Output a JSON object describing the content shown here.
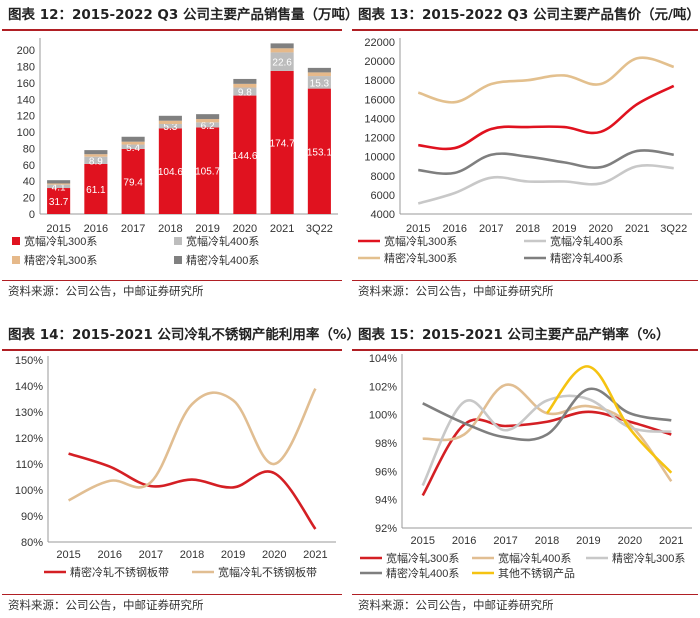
{
  "panels": [
    {
      "title": "图表 12：2015-2022 Q3 公司主要产品销售量（万吨）",
      "source": "资料来源：公司公告，中邮证券研究所"
    },
    {
      "title": "图表 13：2015-2022 Q3 公司主要产品售价（元/吨）",
      "source": "资料来源：公司公告，中邮证券研究所"
    },
    {
      "title": "图表 14：2015-2021 公司冷轧不锈钢产能利用率（%）",
      "source": "资料来源：公司公告，中邮证券研究所"
    },
    {
      "title": "图表 15：2015-2021 公司主要产品产销率（%）",
      "source": "资料来源：公司公告，中邮证券研究所"
    }
  ],
  "chart_data": [
    {
      "type": "bar",
      "stacked": true,
      "categories": [
        "2015",
        "2016",
        "2017",
        "2018",
        "2019",
        "2020",
        "2021",
        "3Q22"
      ],
      "series": [
        {
          "name": "宽幅冷轧300系",
          "color": "#e0121f",
          "values": [
            31.7,
            61.1,
            79.4,
            104.6,
            105.7,
            144.6,
            174.7,
            153.1
          ],
          "show_labels": true,
          "label_color": "#ffffff"
        },
        {
          "name": "宽幅冷轧400系",
          "color": "#bdbdbd",
          "values": [
            4.1,
            8.9,
            5.4,
            5.3,
            6.2,
            9.8,
            22.6,
            15.3
          ],
          "show_labels": true,
          "label_color": "#ffffff"
        },
        {
          "name": "精密冷轧300系",
          "color": "#e6b98a",
          "values": [
            1.5,
            3.0,
            3.5,
            4.0,
            4.0,
            4.5,
            5.0,
            4.5
          ],
          "show_labels": false
        },
        {
          "name": "精密冷轧400系",
          "color": "#808080",
          "values": [
            4.0,
            5.0,
            6.0,
            6.0,
            6.0,
            6.0,
            6.0,
            5.5
          ],
          "show_labels": false
        }
      ],
      "yticks": [
        "0",
        "20",
        "40",
        "60",
        "80",
        "100",
        "120",
        "140",
        "160",
        "180",
        "200"
      ],
      "ylim": [
        0,
        210
      ],
      "legend_position": "bottom"
    },
    {
      "type": "line",
      "categories": [
        "2015",
        "2016",
        "2017",
        "2018",
        "2019",
        "2020",
        "2021",
        "3Q22"
      ],
      "series": [
        {
          "name": "宽幅冷轧300系",
          "color": "#e0121f",
          "values": [
            11200,
            10900,
            12900,
            13100,
            13100,
            12600,
            15500,
            17400
          ]
        },
        {
          "name": "宽幅冷轧400系",
          "color": "#c8c8c8",
          "values": [
            5100,
            6200,
            7800,
            7400,
            7400,
            7200,
            9000,
            8800
          ]
        },
        {
          "name": "精密冷轧300系",
          "color": "#e3c08e",
          "values": [
            16700,
            15700,
            17600,
            18000,
            18500,
            17600,
            20300,
            19400
          ]
        },
        {
          "name": "精密冷轧400系",
          "color": "#7f7f7f",
          "values": [
            8600,
            8300,
            10200,
            10000,
            9400,
            8900,
            10600,
            10200
          ]
        }
      ],
      "yticks": [
        "4000",
        "6000",
        "8000",
        "10000",
        "12000",
        "14000",
        "16000",
        "18000",
        "20000",
        "22000"
      ],
      "ylim": [
        4000,
        22000
      ],
      "legend_position": "bottom"
    },
    {
      "type": "line",
      "categories": [
        "2015",
        "2016",
        "2017",
        "2018",
        "2019",
        "2020",
        "2021"
      ],
      "series": [
        {
          "name": "精密冷轧不锈钢板带",
          "color": "#d41f24",
          "values": [
            114,
            109,
            101.5,
            104,
            101,
            106.5,
            85
          ]
        },
        {
          "name": "宽幅冷轧不锈钢板带",
          "color": "#e1be92",
          "values": [
            96,
            103.5,
            103,
            133,
            134.5,
            110,
            139
          ]
        }
      ],
      "yticks": [
        "80%",
        "90%",
        "100%",
        "110%",
        "120%",
        "130%",
        "140%",
        "150%"
      ],
      "ylim": [
        80,
        150
      ],
      "legend_position": "bottom"
    },
    {
      "type": "line",
      "categories": [
        "2015",
        "2016",
        "2017",
        "2018",
        "2019",
        "2020",
        "2021"
      ],
      "series": [
        {
          "name": "宽幅冷轧300系",
          "color": "#d41f24",
          "values": [
            94.3,
            99.3,
            99.2,
            99.5,
            100.2,
            99.5,
            98.6
          ]
        },
        {
          "name": "宽幅冷轧400系",
          "color": "#e1be92",
          "values": [
            98.3,
            98.6,
            102.1,
            100.1,
            100.6,
            99.3,
            95.3
          ]
        },
        {
          "name": "精密冷轧300系",
          "color": "#c8c8c8",
          "values": [
            95.0,
            100.9,
            98.9,
            101.0,
            101.1,
            99.1,
            98.8
          ]
        },
        {
          "name": "精密冷轧400系",
          "color": "#7f7f7f",
          "values": [
            100.8,
            99.4,
            98.4,
            98.6,
            101.8,
            100.1,
            99.6
          ]
        },
        {
          "name": "其他不锈钢产品",
          "color": "#f5c311",
          "values": [
            null,
            null,
            null,
            100.1,
            103.4,
            99.0,
            95.9
          ]
        }
      ],
      "yticks": [
        "92%",
        "94%",
        "96%",
        "98%",
        "100%",
        "102%",
        "104%"
      ],
      "ylim": [
        92,
        104
      ],
      "legend_position": "bottom"
    }
  ]
}
